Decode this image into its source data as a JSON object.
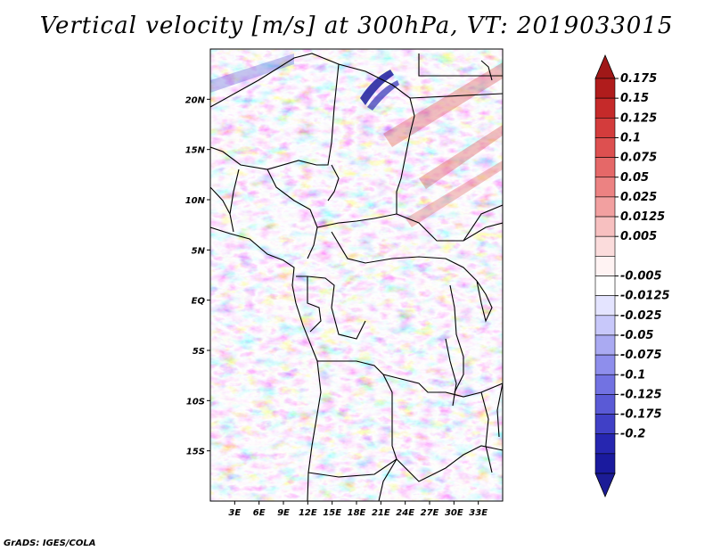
{
  "title": "Vertical velocity [m/s] at 300hPa, VT: 2019033015",
  "credit": "GrADS: IGES/COLA",
  "map": {
    "lon_range": [
      0,
      36
    ],
    "lat_range": [
      -20,
      25
    ],
    "lat_ticks": [
      {
        "value": 20,
        "label": "20N"
      },
      {
        "value": 15,
        "label": "15N"
      },
      {
        "value": 10,
        "label": "10N"
      },
      {
        "value": 5,
        "label": "5N"
      },
      {
        "value": 0,
        "label": "EQ"
      },
      {
        "value": -5,
        "label": "5S"
      },
      {
        "value": -10,
        "label": "10S"
      },
      {
        "value": -15,
        "label": "15S"
      }
    ],
    "lon_ticks": [
      {
        "value": 3,
        "label": "3E"
      },
      {
        "value": 6,
        "label": "6E"
      },
      {
        "value": 9,
        "label": "9E"
      },
      {
        "value": 12,
        "label": "12E"
      },
      {
        "value": 15,
        "label": "15E"
      },
      {
        "value": 18,
        "label": "18E"
      },
      {
        "value": 21,
        "label": "21E"
      },
      {
        "value": 24,
        "label": "24E"
      },
      {
        "value": 27,
        "label": "27E"
      },
      {
        "value": 30,
        "label": "30E"
      },
      {
        "value": 33,
        "label": "33E"
      }
    ]
  },
  "colorbar": {
    "levels": [
      {
        "label": "0.175",
        "color": "#b01c1c"
      },
      {
        "label": "0.15",
        "color": "#c52a2a"
      },
      {
        "label": "0.125",
        "color": "#d33c3c"
      },
      {
        "label": "0.1",
        "color": "#dd5050"
      },
      {
        "label": "0.075",
        "color": "#e56868"
      },
      {
        "label": "0.05",
        "color": "#ec8282"
      },
      {
        "label": "0.025",
        "color": "#f2a0a0"
      },
      {
        "label": "0.0125",
        "color": "#f7c0c0"
      },
      {
        "label": "0.005",
        "color": "#fbdcdc"
      },
      {
        "label": "",
        "color": "#fff3f3"
      },
      {
        "label": "-0.005",
        "color": "#ffffff"
      },
      {
        "label": "-0.0125",
        "color": "#e4e4ff"
      },
      {
        "label": "-0.025",
        "color": "#c8c8fa"
      },
      {
        "label": "-0.05",
        "color": "#aaaaf2"
      },
      {
        "label": "-0.075",
        "color": "#8e8eec"
      },
      {
        "label": "-0.1",
        "color": "#7272e2"
      },
      {
        "label": "-0.125",
        "color": "#5a5ad6"
      },
      {
        "label": "-0.175",
        "color": "#4040c6"
      },
      {
        "label": "-0.2",
        "color": "#2626b0"
      },
      {
        "label": "",
        "color": "#1a1a9e"
      }
    ],
    "top_color": "#a01818",
    "bottom_color": "#1c1c96"
  },
  "colors": {
    "positive_strong": "#c43434",
    "positive_weak": "#f2a3a3",
    "negative_weak": "#b0b0f6",
    "negative_strong": "#4a4ad0",
    "land_mask": "#ffffff",
    "boundaries": "#000000"
  }
}
